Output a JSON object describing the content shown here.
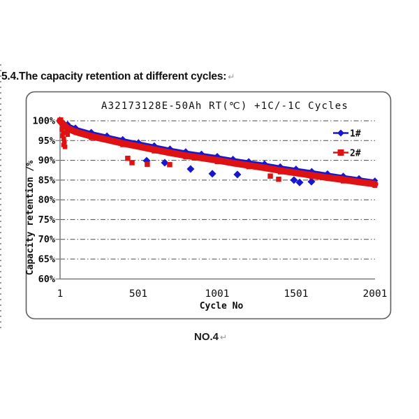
{
  "document": {
    "heading": "5.4.The capacity retention at different cycles:",
    "caption": "NO.4",
    "return_mark": "↵"
  },
  "chart": {
    "title": "A32173128E-50Ah   RT(℃) +1C/-1C  Cycles",
    "y_axis_title": "Capacity retention /%",
    "x_axis_title": "Cycle No",
    "y_ticks": [
      "100%",
      "95%",
      "90%",
      "85%",
      "80%",
      "75%",
      "70%",
      "65%",
      "60%"
    ],
    "x_ticks": [
      "1",
      "501",
      "1001",
      "1501",
      "2001"
    ],
    "legend": [
      {
        "label": "1#",
        "marker": "diamond-icon"
      },
      {
        "label": "2#",
        "marker": "square-icon"
      }
    ],
    "colors": {
      "series1": "#1717cf",
      "series2": "#de1212",
      "grid": "#4a4a4a",
      "axis": "#7a7a7a",
      "border": "#5e5e5e"
    }
  },
  "chart_data": {
    "type": "line",
    "title": "A32173128E-50Ah   RT(℃) +1C/-1C  Cycles",
    "xlabel": "Cycle No",
    "ylabel": "Capacity retention /%",
    "xlim": [
      1,
      2001
    ],
    "ylim_percent": [
      60,
      100
    ],
    "x_tick_values": [
      1,
      501,
      1001,
      1501,
      2001
    ],
    "grid": "dash-dot horizontal every 5%",
    "legend_position": "inside top-right",
    "x": [
      1,
      50,
      100,
      200,
      300,
      400,
      500,
      600,
      700,
      800,
      900,
      1000,
      1100,
      1200,
      1300,
      1400,
      1500,
      1600,
      1700,
      1800,
      1900,
      2001
    ],
    "series": [
      {
        "name": "1#",
        "marker": "diamond",
        "color": "#1717cf",
        "values": [
          100,
          98.9,
          98.0,
          96.9,
          96.0,
          95.1,
          94.3,
          93.5,
          92.7,
          92.0,
          91.4,
          90.8,
          90.1,
          89.5,
          88.9,
          88.2,
          87.6,
          87.0,
          86.4,
          85.8,
          85.2,
          84.6
        ]
      },
      {
        "name": "2#",
        "marker": "square",
        "color": "#de1212",
        "values": [
          100,
          98.1,
          97.2,
          96.1,
          95.2,
          94.3,
          93.5,
          92.7,
          91.9,
          91.2,
          90.6,
          90.0,
          89.3,
          88.7,
          88.1,
          87.4,
          86.8,
          86.2,
          85.6,
          85.1,
          84.5,
          84.0
        ]
      }
    ],
    "outliers_series1_cycle_value": [
      [
        552,
        89.9
      ],
      [
        667,
        89.4
      ],
      [
        831,
        87.8
      ],
      [
        969,
        86.6
      ],
      [
        1128,
        86.4
      ],
      [
        1487,
        85.0
      ],
      [
        1523,
        84.4
      ],
      [
        1598,
        84.6
      ]
    ],
    "outliers_series2_cycle_value": [
      [
        432,
        90.5
      ],
      [
        459,
        89.4
      ],
      [
        556,
        89.0
      ],
      [
        698,
        88.9
      ],
      [
        1337,
        86.0
      ],
      [
        1390,
        85.2
      ]
    ],
    "initial_scatter_series2_cycle_value": [
      [
        8,
        100.3
      ],
      [
        12,
        99.4
      ],
      [
        18,
        98.6
      ],
      [
        14,
        97.8
      ],
      [
        22,
        97.0
      ],
      [
        18,
        96.2
      ],
      [
        26,
        95.4
      ],
      [
        30,
        94.6
      ],
      [
        24,
        93.9
      ],
      [
        34,
        93.4
      ],
      [
        45,
        97.3
      ],
      [
        50,
        96.5
      ]
    ]
  }
}
